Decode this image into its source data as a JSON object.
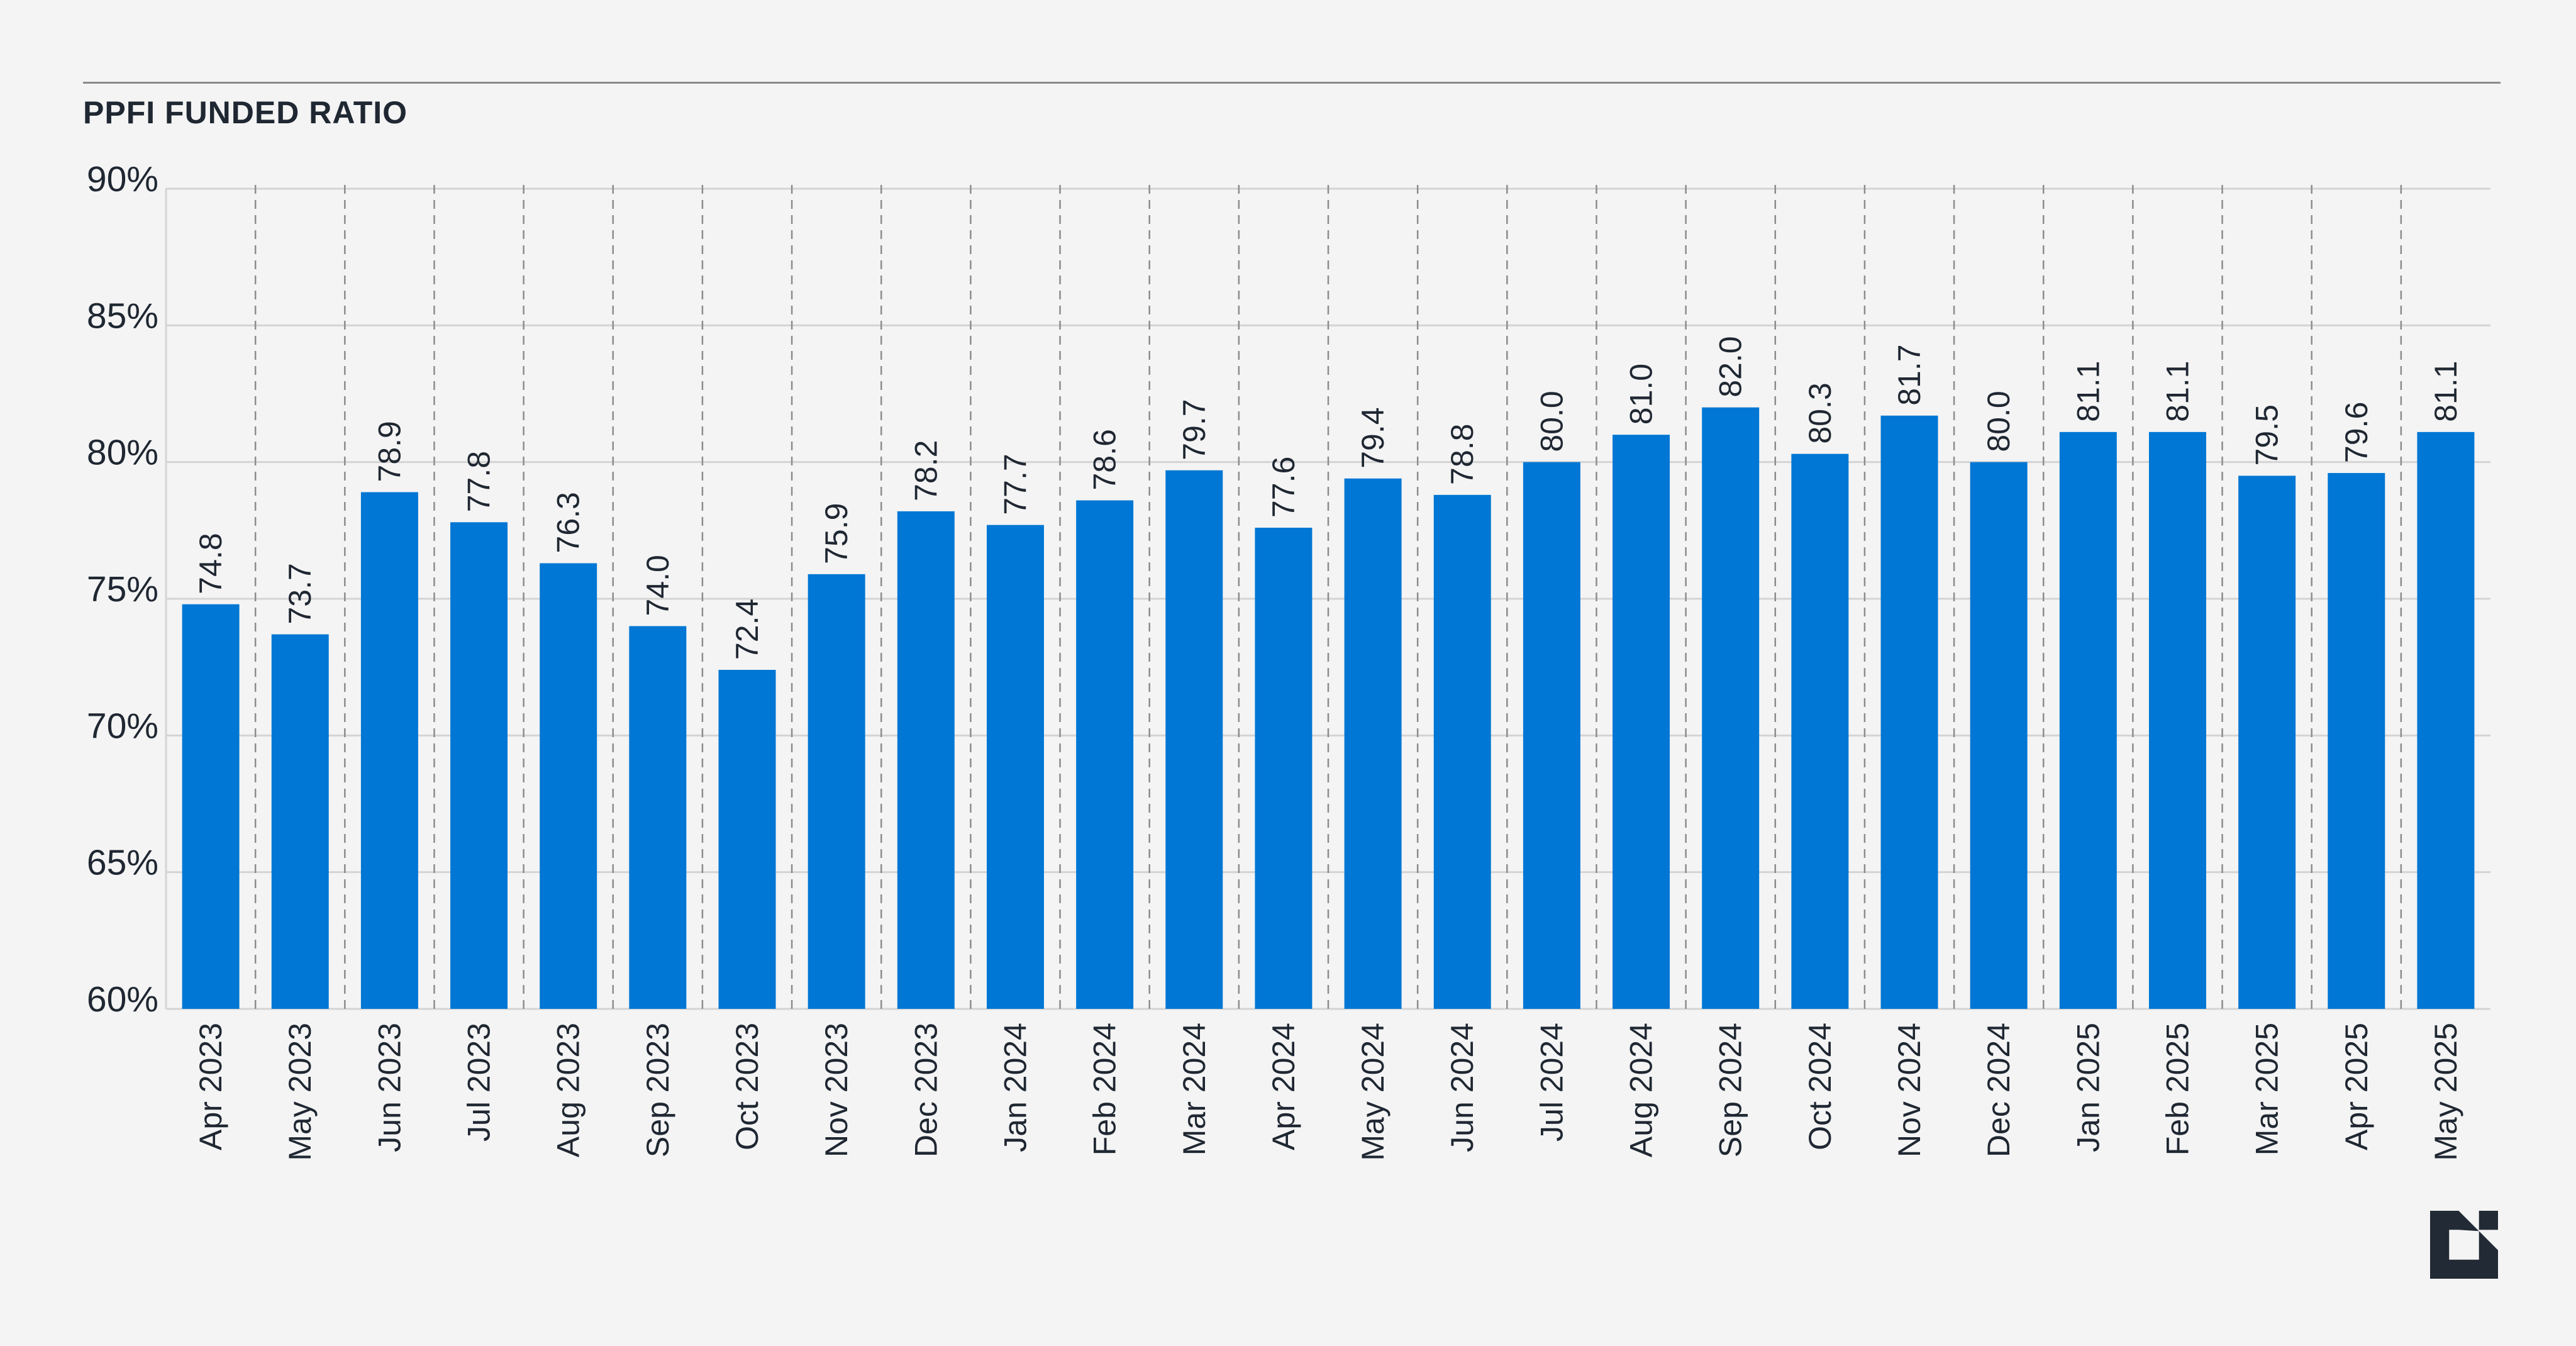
{
  "chart_data": {
    "type": "bar",
    "title": "PPFI FUNDED RATIO",
    "xlabel": "",
    "ylabel": "",
    "ylim": [
      60,
      90
    ],
    "yticks": [
      60,
      65,
      70,
      75,
      80,
      85,
      90
    ],
    "ytick_labels": [
      "60%",
      "65%",
      "70%",
      "75%",
      "80%",
      "85%",
      "90%"
    ],
    "grid": true,
    "categories": [
      "Apr 2023",
      "May 2023",
      "Jun 2023",
      "Jul 2023",
      "Aug 2023",
      "Sep 2023",
      "Oct 2023",
      "Nov 2023",
      "Dec 2023",
      "Jan 2024",
      "Feb 2024",
      "Mar 2024",
      "Apr 2024",
      "May 2024",
      "Jun 2024",
      "Jul 2024",
      "Aug 2024",
      "Sep 2024",
      "Oct 2024",
      "Nov 2024",
      "Dec 2024",
      "Jan 2025",
      "Feb 2025",
      "Mar 2025",
      "Apr 2025",
      "May 2025"
    ],
    "values": [
      74.8,
      73.7,
      78.9,
      77.8,
      76.3,
      74.0,
      72.4,
      75.9,
      78.2,
      77.7,
      78.6,
      79.7,
      77.6,
      79.4,
      78.8,
      80.0,
      81.0,
      82.0,
      80.3,
      81.7,
      80.0,
      81.1,
      81.1,
      79.5,
      79.6,
      81.1
    ],
    "value_labels": [
      "74.8",
      "73.7",
      "78.9",
      "77.8",
      "76.3",
      "74.0",
      "72.4",
      "75.9",
      "78.2",
      "77.7",
      "78.6",
      "79.7",
      "77.6",
      "79.4",
      "78.8",
      "80.0",
      "81.0",
      "82.0",
      "80.3",
      "81.7",
      "80.0",
      "81.1",
      "81.1",
      "79.5",
      "79.6",
      "81.1"
    ],
    "colors": {
      "bar": "#0077d4",
      "text": "#1f2732",
      "grid": "#d4d4d4",
      "separator": "#8c8c8c"
    }
  },
  "logo": {
    "icon": "brand-logo-icon",
    "color": "#222a35"
  }
}
